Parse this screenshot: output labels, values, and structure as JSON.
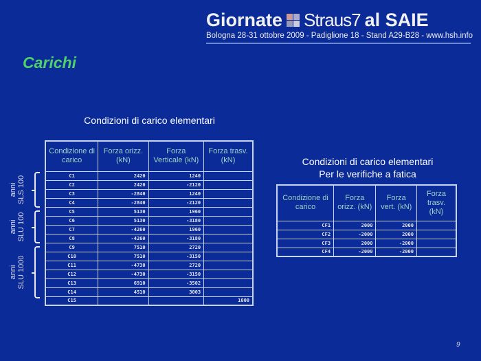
{
  "header": {
    "brand_left": "Giornate",
    "brand_mid": "Straus7",
    "brand_right": "al SAIE",
    "subtitle": "Bologna 28-31 ottobre 2009 - Padiglione 18 - Stand A29-B28 - www.hsh.info"
  },
  "title": "Carichi",
  "left_table": {
    "caption": "Condizioni di carico elementari",
    "headers": [
      "Condizione di carico",
      "Forza orizz. (kN)",
      "Forza Verticale (kN)",
      "Forza trasv. (kN)"
    ],
    "rows": [
      [
        "C1",
        "2420",
        "1240",
        ""
      ],
      [
        "C2",
        "2420",
        "-2120",
        ""
      ],
      [
        "C3",
        "-2840",
        "1240",
        ""
      ],
      [
        "C4",
        "-2840",
        "-2120",
        ""
      ],
      [
        "C5",
        "5130",
        "1960",
        ""
      ],
      [
        "C6",
        "5130",
        "-3180",
        ""
      ],
      [
        "C7",
        "-4260",
        "1960",
        ""
      ],
      [
        "C8",
        "-4260",
        "-3180",
        ""
      ],
      [
        "C9",
        "7510",
        "2720",
        ""
      ],
      [
        "C10",
        "7510",
        "-3150",
        ""
      ],
      [
        "C11",
        "-4730",
        "2720",
        ""
      ],
      [
        "C12",
        "-4730",
        "-3150",
        ""
      ],
      [
        "C13",
        "6910",
        "-3502",
        ""
      ],
      [
        "C14",
        "4510",
        "3003",
        ""
      ],
      [
        "C15",
        "",
        "",
        "1000"
      ]
    ]
  },
  "groups": [
    {
      "line1": "SLS 100",
      "line2": "anni"
    },
    {
      "line1": "SLU 100",
      "line2": "anni"
    },
    {
      "line1": "SLU 1000",
      "line2": "anni"
    }
  ],
  "right_table": {
    "caption_line1": "Condizioni di carico elementari",
    "caption_line2": "Per le verifiche a fatica",
    "headers": [
      "Condizione di carico",
      "Forza orizz. (kN)",
      "Forza vert. (kN)",
      "Forza trasv. (kN)"
    ],
    "rows": [
      [
        "CF1",
        "2000",
        "2000",
        ""
      ],
      [
        "CF2",
        "-2000",
        "2000",
        ""
      ],
      [
        "CF3",
        "2000",
        "-2000",
        ""
      ],
      [
        "CF4",
        "-2000",
        "-2000",
        ""
      ]
    ]
  },
  "page_number": "9"
}
